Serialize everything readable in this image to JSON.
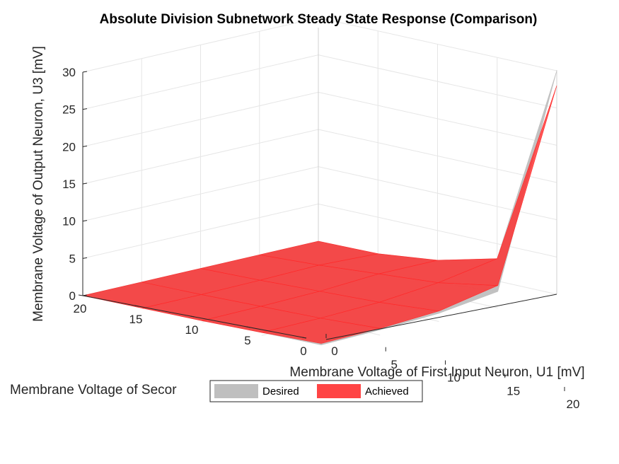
{
  "chart_data": {
    "type": "surface",
    "title": "Absolute Division Subnetwork Steady State Response (Comparison)",
    "xlabel": "Membrane Voltage of First Input Neuron, U1 [mV]",
    "ylabel": "Membrane Voltage of Secor",
    "zlabel": "Membrane Voltage of Output Neuron, U3 [mV]",
    "x_ticks": [
      "0",
      "5",
      "10",
      "15",
      "20"
    ],
    "y_ticks": [
      "0",
      "5",
      "10",
      "15",
      "20"
    ],
    "z_ticks": [
      "0",
      "5",
      "10",
      "15",
      "20",
      "25",
      "30"
    ],
    "xlim": [
      0,
      20
    ],
    "ylim": [
      0,
      20
    ],
    "zlim": [
      0,
      30
    ],
    "grid": true,
    "legend_position": "bottom-center",
    "series": [
      {
        "name": "Desired",
        "color": "#bfbfbf",
        "u1": [
          0,
          5,
          10,
          15,
          20
        ],
        "u2": [
          0,
          5,
          10,
          15,
          20
        ],
        "u3": [
          [
            0,
            0,
            0,
            0,
            0
          ],
          [
            0.1,
            0.4,
            0.2,
            0.1,
            0.1
          ],
          [
            1,
            1,
            0.5,
            0.3,
            0.2
          ],
          [
            3,
            1.6,
            0.8,
            0.5,
            0.4
          ],
          [
            30,
            2.2,
            1.1,
            0.7,
            0.5
          ]
        ]
      },
      {
        "name": "Achieved",
        "color": "#ff2a2a",
        "u1": [
          0,
          5,
          10,
          15,
          20
        ],
        "u2": [
          0,
          5,
          10,
          15,
          20
        ],
        "u3": [
          [
            0,
            0,
            0,
            0,
            0
          ],
          [
            0.1,
            0.4,
            0.2,
            0.1,
            0.1
          ],
          [
            1,
            1,
            0.5,
            0.3,
            0.2
          ],
          [
            3,
            1.6,
            0.8,
            0.5,
            0.4
          ],
          [
            28,
            3,
            1.4,
            0.9,
            0.7
          ]
        ]
      }
    ]
  }
}
